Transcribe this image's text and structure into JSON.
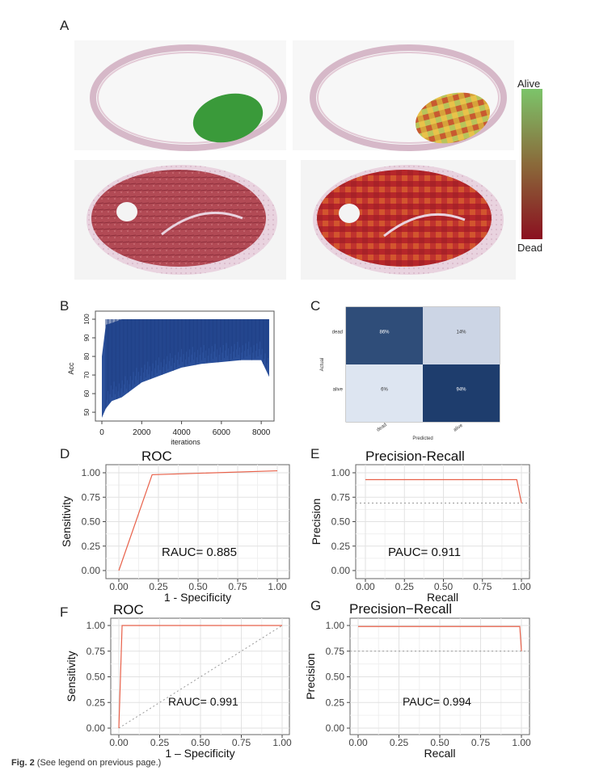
{
  "caption": {
    "fig": "Fig. 2",
    "text": "(See legend on previous page.)"
  },
  "panels": {
    "A": {
      "label": "A",
      "colorbar": {
        "top_label": "Alive",
        "bottom_label": "Dead",
        "top_color": "#7cc46a",
        "mid_color": "#8a6a3a",
        "bottom_color": "#8b1020"
      }
    },
    "B": {
      "label": "B"
    },
    "C": {
      "label": "C"
    },
    "D": {
      "label": "D"
    },
    "E": {
      "label": "E"
    },
    "F": {
      "label": "F"
    },
    "G": {
      "label": "G"
    }
  },
  "chart_data": [
    {
      "id": "B",
      "type": "line",
      "xlabel": "iterations",
      "ylabel": "Acc",
      "xlim": [
        0,
        8400
      ],
      "ylim": [
        47,
        100
      ],
      "xticks": [
        "0",
        "2000",
        "4000",
        "6000",
        "8000"
      ],
      "yticks": [
        "50",
        "60",
        "70",
        "80",
        "90",
        "100"
      ],
      "series": [
        {
          "color": "#2a4f9a",
          "x": [
            0,
            200,
            500,
            1000,
            2000,
            3000,
            4000,
            5000,
            6000,
            7000,
            8000,
            8400
          ],
          "upper": [
            80,
            97,
            98,
            100,
            100,
            100,
            100,
            100,
            100,
            100,
            100,
            100
          ],
          "lower": [
            47,
            52,
            56,
            58,
            66,
            70,
            74,
            76,
            77,
            78,
            78,
            69
          ]
        }
      ]
    },
    {
      "id": "C",
      "type": "heatmap",
      "xlabel": "Predicted",
      "ylabel": "Actual",
      "row_labels": [
        "dead",
        "alive"
      ],
      "col_labels": [
        "dead",
        "alive"
      ],
      "cells": [
        [
          "86%",
          "14%"
        ],
        [
          "6%",
          "94%"
        ]
      ],
      "values": [
        [
          0.86,
          0.14
        ],
        [
          0.06,
          0.94
        ]
      ]
    },
    {
      "id": "D",
      "type": "line",
      "title": "ROC",
      "xlabel": "1 - Specificity",
      "ylabel": "Sensitivity",
      "xlim": [
        0,
        1
      ],
      "ylim": [
        0,
        1
      ],
      "xticks": [
        "0.00",
        "0.25",
        "0.50",
        "0.75",
        "1.00"
      ],
      "yticks": [
        "0.00",
        "0.25",
        "0.50",
        "0.75",
        "1.00"
      ],
      "annotation": "RAUC= 0.885",
      "series": [
        {
          "color": "#e8614a",
          "x": [
            0,
            0.21,
            1.0
          ],
          "y": [
            0,
            0.98,
            1.02
          ]
        }
      ]
    },
    {
      "id": "E",
      "type": "line",
      "title": "Precision-Recall",
      "xlabel": "Recall",
      "ylabel": "Precision",
      "xlim": [
        0,
        1
      ],
      "ylim": [
        0,
        1
      ],
      "xticks": [
        "0.00",
        "0.25",
        "0.50",
        "0.75",
        "1.00"
      ],
      "yticks": [
        "0.00",
        "0.25",
        "0.50",
        "0.75",
        "1.00"
      ],
      "annotation": "PAUC= 0.911",
      "baseline": 0.69,
      "series": [
        {
          "color": "#e8614a",
          "x": [
            0.0,
            0.97,
            1.0
          ],
          "y": [
            0.93,
            0.93,
            0.69
          ]
        }
      ]
    },
    {
      "id": "F",
      "type": "line",
      "title": "ROC",
      "xlabel": "1 – Specificity",
      "ylabel": "Sensitivity",
      "xlim": [
        0,
        1
      ],
      "ylim": [
        0,
        1
      ],
      "xticks": [
        "0.00",
        "0.25",
        "0.50",
        "0.75",
        "1.00"
      ],
      "yticks": [
        "0.00",
        "0.25",
        "0.50",
        "0.75",
        "1.00"
      ],
      "annotation": "RAUC= 0.991",
      "diagonal": true,
      "series": [
        {
          "color": "#e8614a",
          "x": [
            0,
            0.02,
            1.0
          ],
          "y": [
            0,
            1.0,
            1.0
          ]
        }
      ]
    },
    {
      "id": "G",
      "type": "line",
      "title": "Precision−Recall",
      "xlabel": "Recall",
      "ylabel": "Precision",
      "xlim": [
        0,
        1
      ],
      "ylim": [
        0,
        1
      ],
      "xticks": [
        "0.00",
        "0.25",
        "0.50",
        "0.75",
        "1.00"
      ],
      "yticks": [
        "0.00",
        "0.25",
        "0.50",
        "0.75",
        "1.00"
      ],
      "annotation": "PAUC= 0.994",
      "baseline": 0.75,
      "series": [
        {
          "color": "#e8614a",
          "x": [
            0.0,
            0.99,
            1.0
          ],
          "y": [
            0.99,
            0.99,
            0.75
          ]
        }
      ]
    }
  ]
}
